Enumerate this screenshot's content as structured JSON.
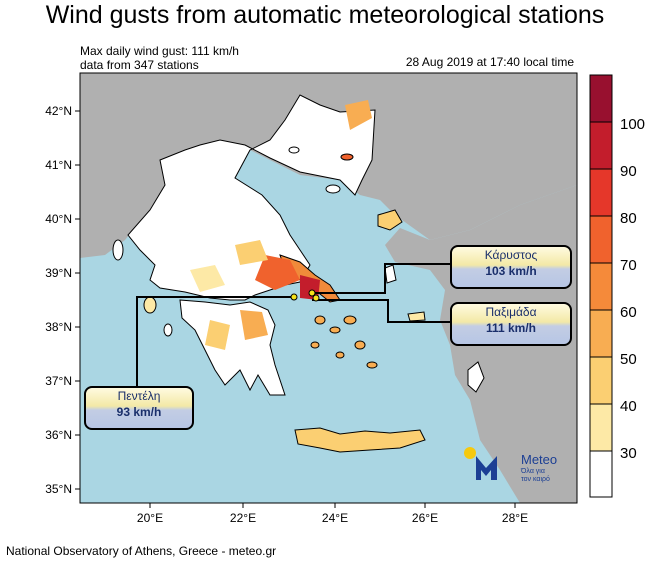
{
  "title": "Wind gusts from automatic meteorological stations",
  "info": {
    "max_gust": "Max daily wind gust: 111 km/h",
    "stations": "data from 347 stations",
    "datetime": "28 Aug 2019 at 17:40 local time"
  },
  "footer": "National Observatory of Athens, Greece - meteo.gr",
  "axes": {
    "lat_ticks": [
      "42°N",
      "41°N",
      "40°N",
      "39°N",
      "38°N",
      "37°N",
      "36°N",
      "35°N"
    ],
    "lon_ticks": [
      "20°E",
      "22°E",
      "24°E",
      "26°E",
      "28°E"
    ]
  },
  "colorbar": {
    "labels": [
      "100",
      "90",
      "80",
      "70",
      "60",
      "50",
      "40",
      "30"
    ],
    "colors": [
      "#ffffff",
      "#fde9a6",
      "#fbcf72",
      "#f8ad52",
      "#f58a3a",
      "#f0622d",
      "#e5372a",
      "#c31d2c",
      "#98102f"
    ]
  },
  "stations": [
    {
      "name": "Κάρυστος",
      "value": "103 km/h"
    },
    {
      "name": "Παξιμάδα",
      "value": "111 km/h"
    },
    {
      "name": "Πεντέλη",
      "value": "93 km/h"
    }
  ],
  "logo": {
    "name": "Meteo",
    "tagline_1": "Όλα για",
    "tagline_2": "τον καιρό"
  },
  "map_colors": {
    "sea": "#aad6e3",
    "land_outside": "#b0b0b0",
    "greece": "#ffffff"
  }
}
